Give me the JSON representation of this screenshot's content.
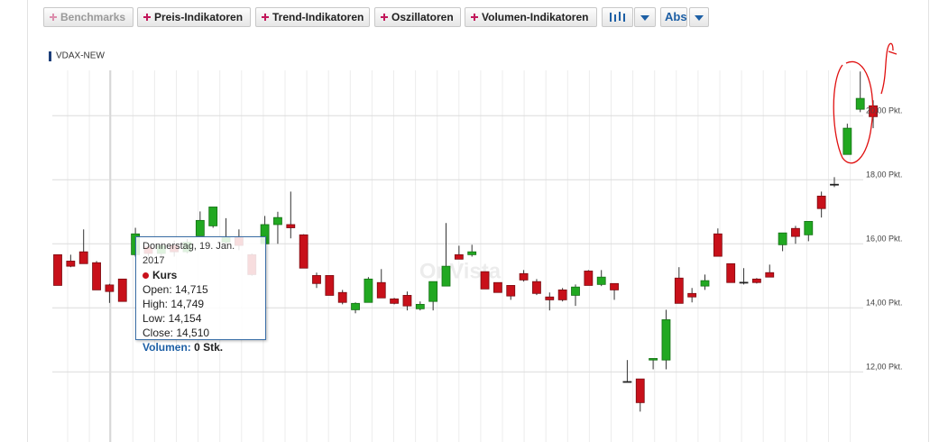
{
  "toolbar": {
    "buttons": [
      "Benchmarks",
      "Preis-Indikatoren",
      "Trend-Indikatoren",
      "Oszillatoren",
      "Volumen-Indikatoren"
    ],
    "scale": "Abs"
  },
  "chart_data": {
    "type": "candlestick",
    "series": [
      {
        "name": "VDAX-NEW",
        "up_color": "#21a821",
        "down_color": "#c8101a",
        "open": [
          15.66,
          15.46,
          15.75,
          15.41,
          14.715,
          14.9,
          15.66,
          15.9,
          15.7,
          15.95,
          15.75,
          16.25,
          16.56,
          16.05,
          16.2,
          15.66,
          16.0,
          16.6,
          16.6,
          16.28,
          15.01,
          15.01,
          14.48,
          13.94,
          14.17,
          14.79,
          14.28,
          14.39,
          13.97,
          14.2,
          14.68,
          15.66,
          15.66,
          15.13,
          14.79,
          14.7,
          15.07,
          14.82,
          14.34,
          14.56,
          14.39,
          15.15,
          14.73,
          14.76,
          11.7,
          11.78,
          12.37,
          12.37,
          14.93,
          14.45,
          14.68,
          16.31,
          15.38,
          14.8,
          14.9,
          15.1,
          15.97,
          16.48,
          16.28,
          17.49,
          17.86,
          18.79,
          20.2,
          20.31
        ],
        "high": [
          15.66,
          15.66,
          16.45,
          15.46,
          14.749,
          14.9,
          16.5,
          16.0,
          16.05,
          16.1,
          16.15,
          17.01,
          17.15,
          16.8,
          16.45,
          15.7,
          16.87,
          17.0,
          17.63,
          16.3,
          15.1,
          15.01,
          14.56,
          14.17,
          14.96,
          15.21,
          14.31,
          14.51,
          14.2,
          14.82,
          16.65,
          15.94,
          15.97,
          15.13,
          14.79,
          14.7,
          15.18,
          14.9,
          14.48,
          14.62,
          14.73,
          15.18,
          15.18,
          14.76,
          12.37,
          11.78,
          12.42,
          13.94,
          15.27,
          14.62,
          15.04,
          16.48,
          15.38,
          15.24,
          14.93,
          15.35,
          16.34,
          16.56,
          16.7,
          17.63,
          18.08,
          19.75,
          21.38,
          20.48
        ],
        "low": [
          14.7,
          15.27,
          15.38,
          14.56,
          14.154,
          14.2,
          15.6,
          15.6,
          15.6,
          15.6,
          15.7,
          16.25,
          16.5,
          15.95,
          15.8,
          15.0,
          15.97,
          16.0,
          16.17,
          15.24,
          14.62,
          14.39,
          14.11,
          13.83,
          14.17,
          14.31,
          14.11,
          13.92,
          13.92,
          13.92,
          14.68,
          15.52,
          15.6,
          14.59,
          14.48,
          14.25,
          14.82,
          14.4,
          13.92,
          14.2,
          14.06,
          14.7,
          14.68,
          14.25,
          11.69,
          10.76,
          12.08,
          12.08,
          14.14,
          14.17,
          14.56,
          15.61,
          14.79,
          14.73,
          14.76,
          14.96,
          15.77,
          16.0,
          16.08,
          16.82,
          17.77,
          18.79,
          20.11,
          19.61
        ],
        "close": [
          14.7,
          15.3,
          15.38,
          14.56,
          14.51,
          14.2,
          16.31,
          15.7,
          15.95,
          15.75,
          16.05,
          16.73,
          17.15,
          16.2,
          15.95,
          15.04,
          16.6,
          16.82,
          16.5,
          15.24,
          14.76,
          14.39,
          14.17,
          14.14,
          14.9,
          14.31,
          14.14,
          14.06,
          14.11,
          14.82,
          15.3,
          15.52,
          15.75,
          14.59,
          14.48,
          14.37,
          14.87,
          14.45,
          14.25,
          14.25,
          14.65,
          14.7,
          14.96,
          14.56,
          11.69,
          11.04,
          12.42,
          13.63,
          14.14,
          14.34,
          14.85,
          15.61,
          14.79,
          14.79,
          14.79,
          14.96,
          16.34,
          16.23,
          16.7,
          17.1,
          17.86,
          19.61,
          20.54,
          19.97
        ]
      }
    ],
    "ylim": [
      10.6,
      21.5
    ],
    "yticks": [
      {
        "value": 12,
        "label": "12,00 Pkt."
      },
      {
        "value": 14,
        "label": "14,00 Pkt."
      },
      {
        "value": 16,
        "label": "16,00 Pkt."
      },
      {
        "value": 18,
        "label": "18,00 Pkt."
      },
      {
        "value": 20,
        "label": "20,00 Pkt."
      }
    ],
    "grid": true,
    "watermark": "OnVista",
    "tooltip": {
      "date": "Donnerstag, 19. Jan. 2017",
      "series": "Kurs",
      "rows": [
        "Open: 14,715",
        "High: 14,749",
        "Low: 14,154",
        "Close: 14,510"
      ],
      "volume_label": "Volumen:",
      "volume_value": "0 Stk."
    }
  }
}
